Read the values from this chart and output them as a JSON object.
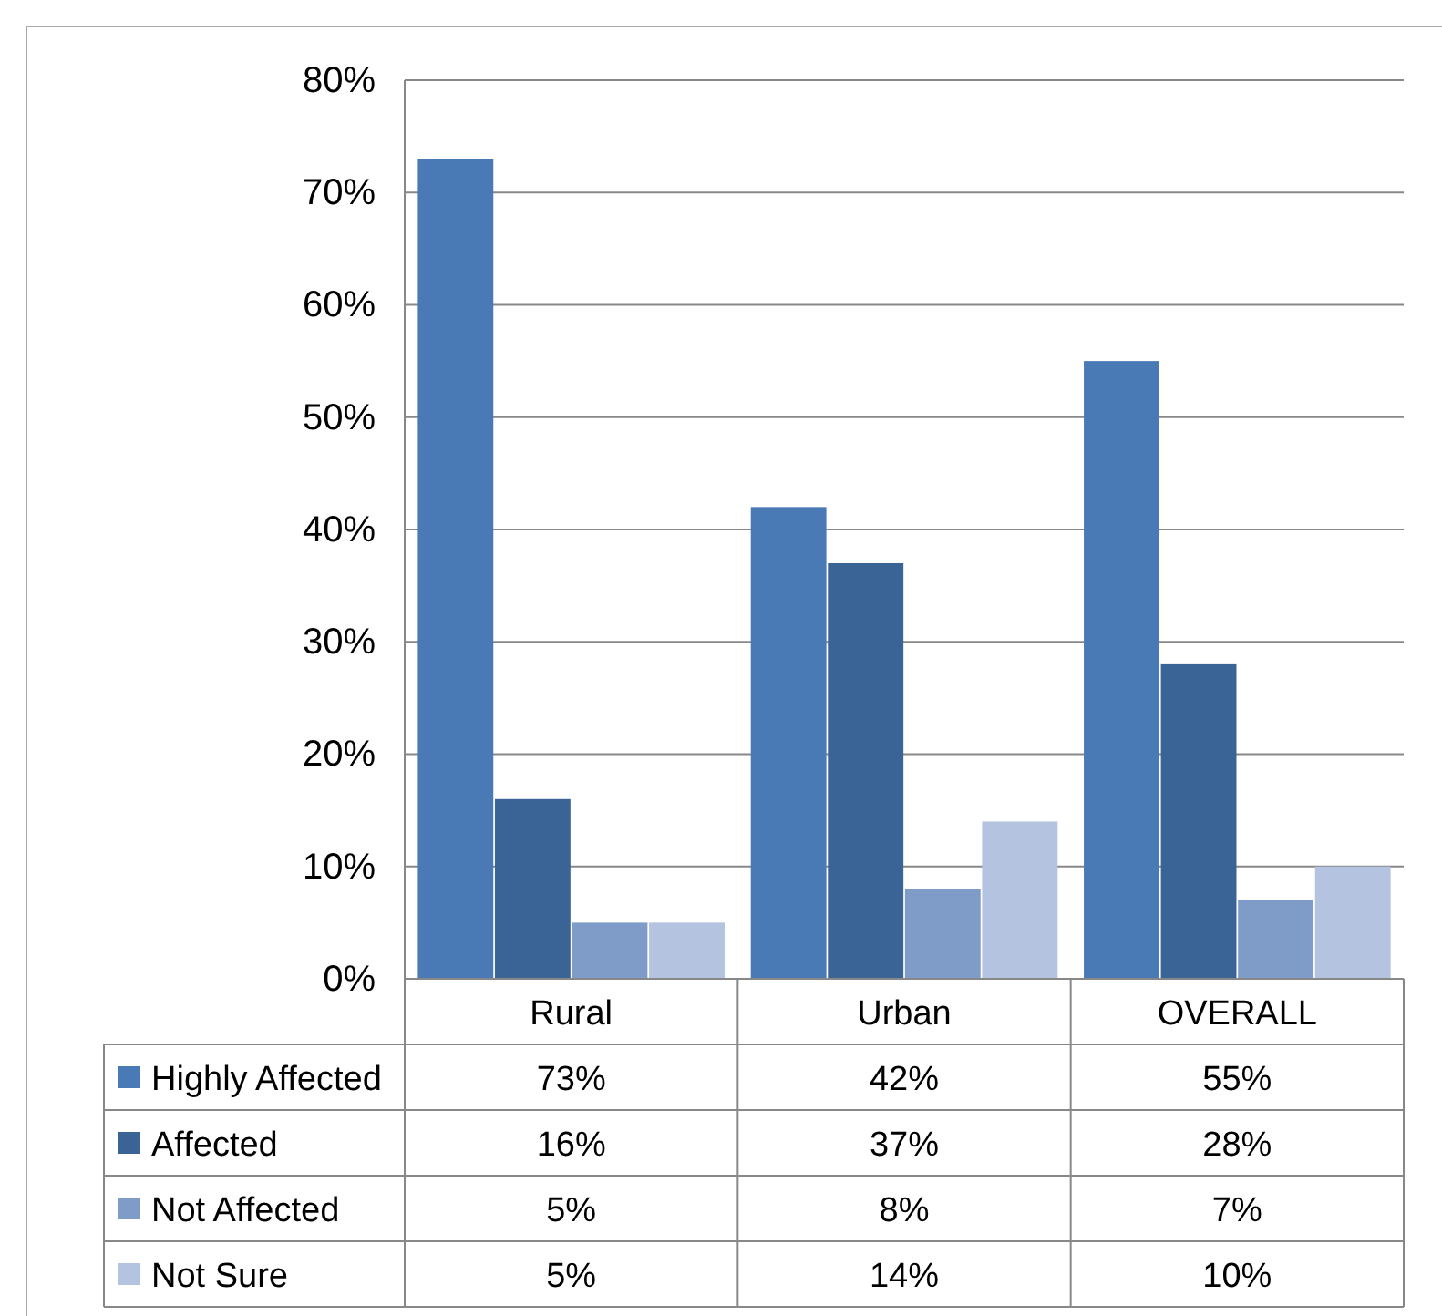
{
  "chart_data": {
    "type": "bar",
    "categories": [
      "Rural",
      "Urban",
      "OVERALL"
    ],
    "series": [
      {
        "name": "Highly Affected",
        "color": "#4a7ab5",
        "values": [
          73,
          42,
          55
        ],
        "value_labels": [
          "73%",
          "42%",
          "55%"
        ]
      },
      {
        "name": "Affected",
        "color": "#3b6496",
        "values": [
          16,
          37,
          28
        ],
        "value_labels": [
          "16%",
          "37%",
          "28%"
        ]
      },
      {
        "name": "Not Affected",
        "color": "#7f9cc9",
        "values": [
          5,
          8,
          7
        ],
        "value_labels": [
          "5%",
          "8%",
          "7%"
        ]
      },
      {
        "name": "Not Sure",
        "color": "#b3c3e0",
        "values": [
          5,
          14,
          10
        ],
        "value_labels": [
          "5%",
          "14%",
          "10%"
        ]
      }
    ],
    "ylim": [
      0,
      80
    ],
    "yticks": [
      {
        "value": 0,
        "label": "0%"
      },
      {
        "value": 10,
        "label": "10%"
      },
      {
        "value": 20,
        "label": "20%"
      },
      {
        "value": 30,
        "label": "30%"
      },
      {
        "value": 40,
        "label": "40%"
      },
      {
        "value": 50,
        "label": "50%"
      },
      {
        "value": 60,
        "label": "60%"
      },
      {
        "value": 70,
        "label": "70%"
      },
      {
        "value": 80,
        "label": "80%"
      }
    ],
    "grid": "y",
    "legend": "bottom"
  }
}
